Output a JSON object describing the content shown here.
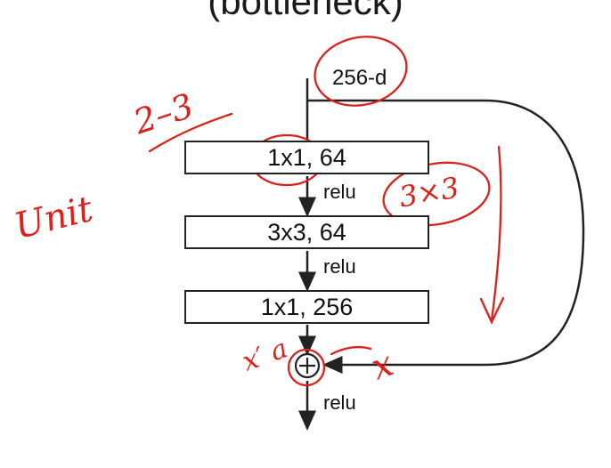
{
  "heading": "(bottleneck)",
  "input_label": "256-d",
  "layers": [
    {
      "label": "1x1, 64"
    },
    {
      "label": "3x3, 64"
    },
    {
      "label": "1x1, 256"
    }
  ],
  "activation_label": "relu",
  "annotations": {
    "range": "2–3",
    "unit": "Unit",
    "kernel": "3×3",
    "x_prime": "x′ a",
    "x": "x"
  },
  "colors": {
    "ink": "#222222",
    "annotation": "#d9221c",
    "background": "#ffffff"
  }
}
